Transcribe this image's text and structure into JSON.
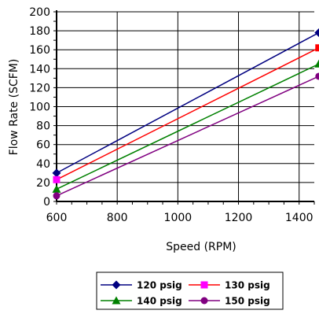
{
  "chart_data": {
    "type": "line",
    "xlabel": "Speed (RPM)",
    "ylabel": "Flow Rate (SCFM)",
    "xlim": [
      600,
      1450
    ],
    "ylim": [
      0,
      200
    ],
    "x_ticks": [
      "600",
      "800",
      "1000",
      "1200",
      "1400"
    ],
    "y_ticks": [
      "0",
      "20",
      "40",
      "60",
      "80",
      "100",
      "120",
      "140",
      "160",
      "180",
      "200"
    ],
    "grid": true,
    "legend": "bottom",
    "series": [
      {
        "name": "120 psig",
        "color": "#000080",
        "marker": "diamond",
        "x": [
          600,
          1465
        ],
        "y": [
          30,
          178
        ]
      },
      {
        "name": "130 psig",
        "color": "#ff0000",
        "marker_color": "#ff00ff",
        "marker_color_end": "#ff0000",
        "marker": "square",
        "x": [
          600,
          1465
        ],
        "y": [
          23,
          162
        ]
      },
      {
        "name": "140 psig",
        "color": "#008000",
        "marker": "triangle",
        "x": [
          600,
          1465
        ],
        "y": [
          13,
          145
        ]
      },
      {
        "name": "150 psig",
        "color": "#800080",
        "marker": "circle",
        "x": [
          600,
          1465
        ],
        "y": [
          6,
          132
        ]
      }
    ]
  }
}
